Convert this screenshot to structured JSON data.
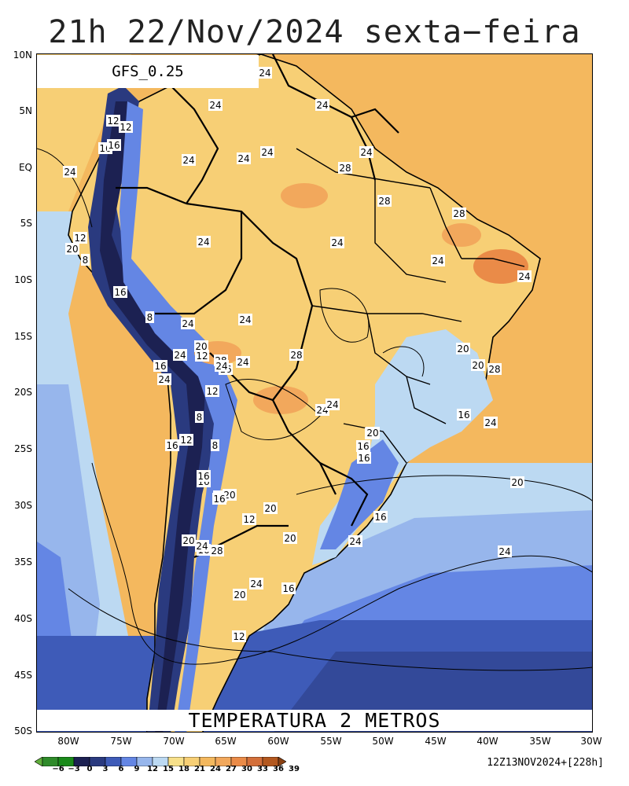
{
  "header": {
    "title": "21h 22/Nov/2024 sexta−feira"
  },
  "map": {
    "model_label": "GFS_0.25",
    "variable_label": "TEMPERATURA 2 METROS",
    "lat_labels": [
      "10N",
      "5N",
      "EQ",
      "5S",
      "10S",
      "15S",
      "20S",
      "25S",
      "30S",
      "35S",
      "40S",
      "45S",
      "50S"
    ],
    "lon_labels": [
      "80W",
      "75W",
      "70W",
      "65W",
      "60W",
      "55W",
      "50W",
      "45W",
      "40W",
      "35W",
      "30W"
    ],
    "contour_labels": [
      "24",
      "24",
      "24",
      "24",
      "24",
      "24",
      "24",
      "28",
      "28",
      "28",
      "24",
      "24",
      "24",
      "24",
      "12",
      "12",
      "16",
      "16",
      "24",
      "12",
      "20",
      "8",
      "16",
      "8",
      "24",
      "20",
      "12",
      "16",
      "16",
      "12",
      "8",
      "12",
      "16",
      "8",
      "16",
      "24",
      "20",
      "24",
      "28",
      "20",
      "20",
      "20",
      "16",
      "16",
      "20",
      "16",
      "24",
      "24",
      "20",
      "20",
      "16",
      "20",
      "12",
      "16",
      "20",
      "24",
      "16",
      "12",
      "16",
      "20",
      "24",
      "28",
      "28",
      "28",
      "24",
      "24",
      "24",
      "24",
      "24",
      "16",
      "20",
      "24"
    ],
    "background_colors": {
      "ocean_warm": "#f4b85e",
      "ocean_cool": "#bcd9f2",
      "ocean_cold": "#6d8ee6",
      "land_warm": "#f7cf75",
      "land_hot": "#f2a85c"
    }
  },
  "colorbar": {
    "labels": [
      "−6",
      "−3",
      "0",
      "3",
      "6",
      "9",
      "12",
      "15",
      "18",
      "21",
      "24",
      "27",
      "30",
      "33",
      "36",
      "39"
    ],
    "colors": [
      "#5fae3a",
      "#2f8b2a",
      "#1a8a1a",
      "#1c2152",
      "#2a3a7f",
      "#3e5bb8",
      "#6486e4",
      "#97b6ec",
      "#bcd9f2",
      "#f7e08a",
      "#f7cf75",
      "#f4b85e",
      "#f2a85c",
      "#ea8b48",
      "#d36f3a",
      "#b3581f",
      "#8a4012"
    ]
  },
  "footer": {
    "run_label": "12Z13NOV2024+[228h]"
  }
}
